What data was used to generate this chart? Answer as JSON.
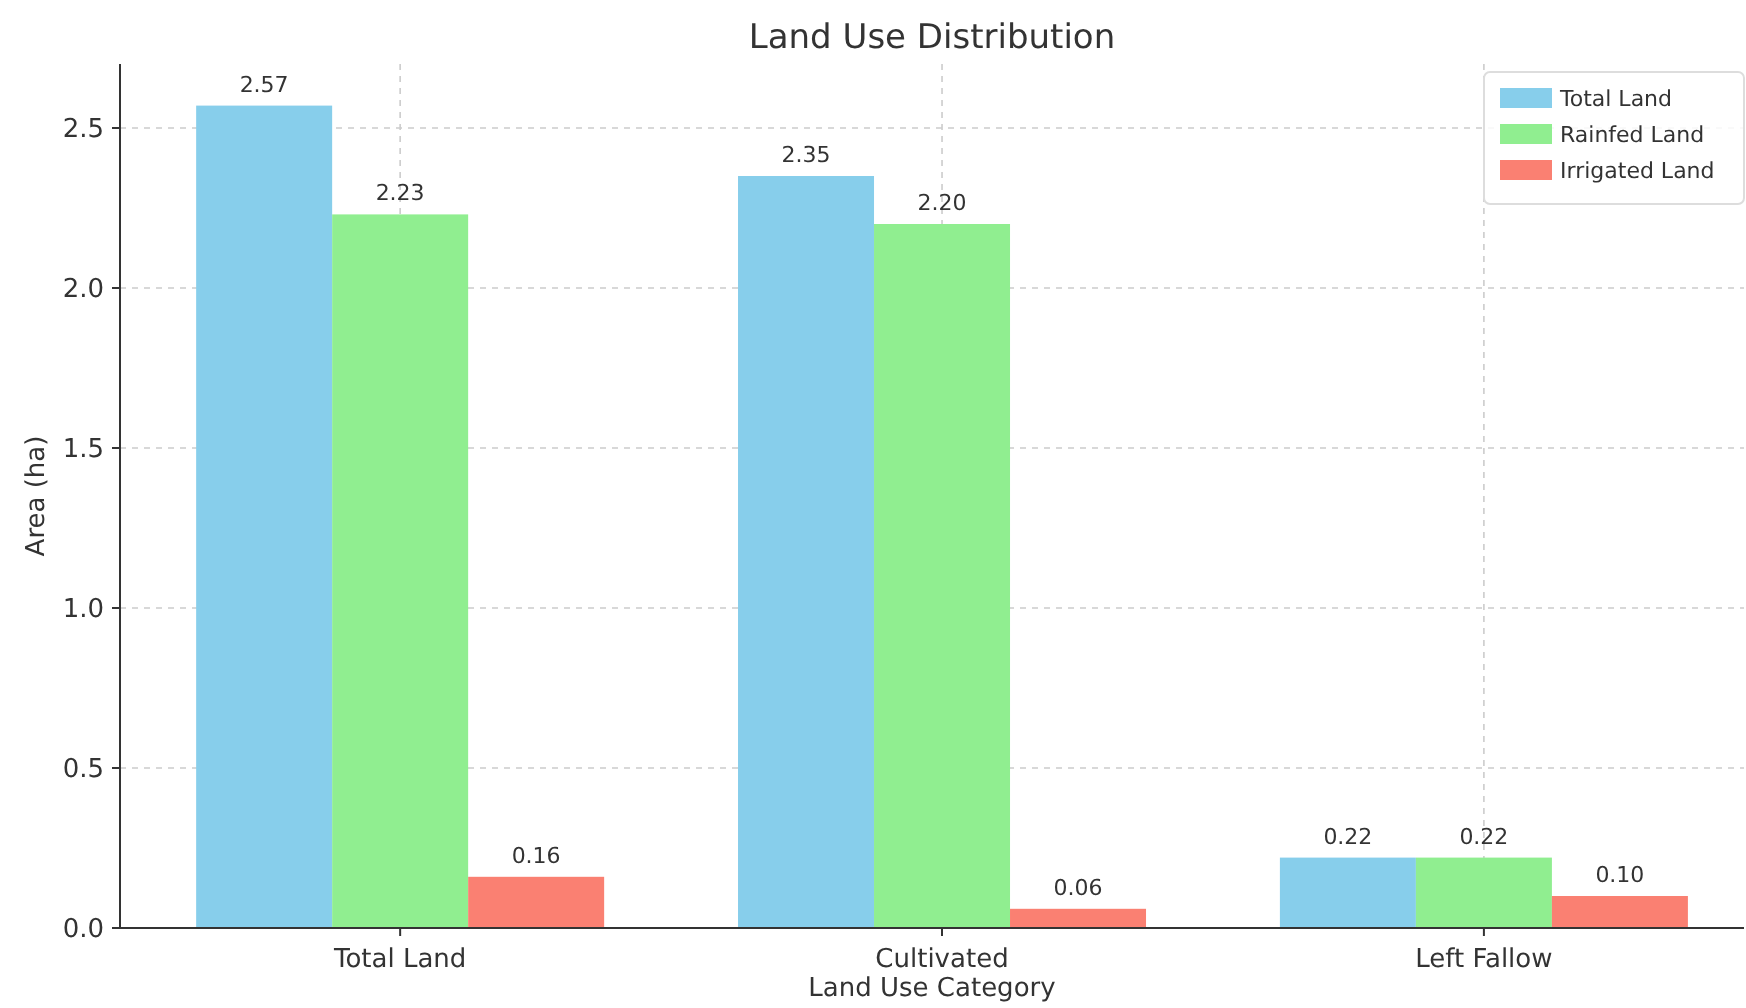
{
  "chart_data": {
    "type": "bar",
    "title": "Land Use Distribution",
    "xlabel": "Land Use Category",
    "ylabel": "Area (ha)",
    "categories": [
      "Total Land",
      "Cultivated",
      "Left Fallow"
    ],
    "series": [
      {
        "name": "Total Land",
        "color": "#87ceeb",
        "values": [
          2.57,
          2.35,
          0.22
        ],
        "value_labels": [
          "2.57",
          "2.35",
          "0.22"
        ]
      },
      {
        "name": "Rainfed Land",
        "color": "#90ee90",
        "values": [
          2.23,
          2.2,
          0.22
        ],
        "value_labels": [
          "2.23",
          "2.20",
          "0.22"
        ]
      },
      {
        "name": "Irrigated Land",
        "color": "#fa8072",
        "values": [
          0.16,
          0.06,
          0.1
        ],
        "value_labels": [
          "0.16",
          "0.06",
          "0.10"
        ]
      }
    ],
    "ylim": [
      0,
      2.7
    ],
    "yticks": [
      {
        "value": 0,
        "label": "0.0"
      },
      {
        "value": 0.5,
        "label": "0.5"
      },
      {
        "value": 1,
        "label": "1.0"
      },
      {
        "value": 1.5,
        "label": "1.5"
      },
      {
        "value": 2,
        "label": "2.0"
      },
      {
        "value": 2.5,
        "label": "2.5"
      }
    ],
    "grid": true,
    "legend": "top right"
  }
}
